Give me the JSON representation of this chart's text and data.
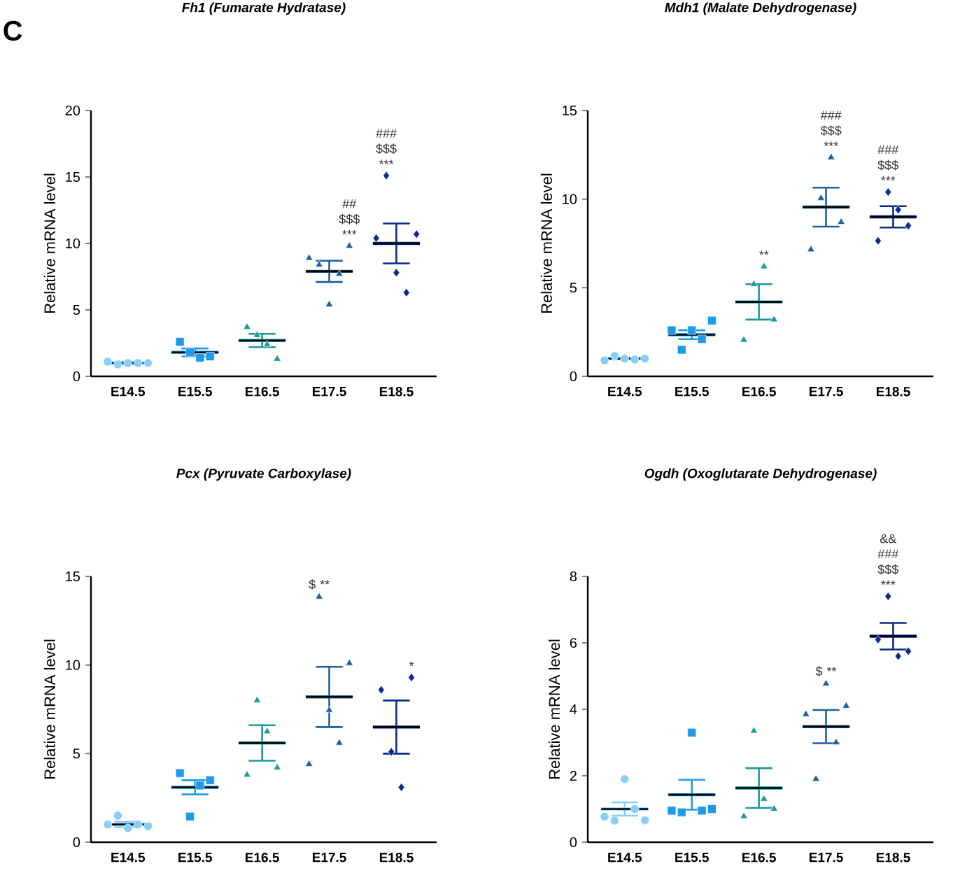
{
  "chart_data": [
    {
      "type": "scatter",
      "title": "Fh1 (Fumarate Hydratase)",
      "ylabel": "Relative mRNA level",
      "categories": [
        "E14.5",
        "E15.5",
        "E16.5",
        "E17.5",
        "E18.5"
      ],
      "ylim": [
        0,
        20
      ],
      "yticks": [
        0,
        5,
        10,
        15,
        20
      ],
      "series": [
        {
          "x": [
            "E14.5",
            "E14.5",
            "E14.5",
            "E14.5",
            "E14.5"
          ],
          "values": [
            1.1,
            0.9,
            1.0,
            1.0,
            1.0
          ],
          "color": "#87cefa",
          "marker": "circle"
        },
        {
          "x": [
            "E15.5",
            "E15.5",
            "E15.5",
            "E15.5"
          ],
          "values": [
            2.6,
            1.8,
            1.4,
            1.5
          ],
          "color": "#1e9be8",
          "marker": "square"
        },
        {
          "x": [
            "E16.5",
            "E16.5",
            "E16.5",
            "E16.5"
          ],
          "values": [
            3.7,
            3.1,
            2.4,
            1.3
          ],
          "color": "#1a9a9a",
          "marker": "triangle"
        },
        {
          "x": [
            "E17.5",
            "E17.5",
            "E17.5",
            "E17.5",
            "E17.5"
          ],
          "values": [
            8.9,
            8.4,
            5.4,
            7.7,
            9.8
          ],
          "color": "#1f5f9f",
          "marker": "triangle",
          "value_labels": [
            null,
            null,
            null,
            null,
            "## $$$ ***"
          ]
        },
        {
          "x": [
            "E18.5",
            "E18.5",
            "E18.5",
            "E18.5",
            "E18.5"
          ],
          "values": [
            10.4,
            15.1,
            7.8,
            6.3,
            10.7
          ],
          "color": "#0a2a8c",
          "marker": "diamond",
          "value_labels": [
            null,
            "### $$$ ***",
            null,
            null,
            null
          ]
        },
        {
          "type": "box",
          "boxes": [
            {
              "low": 0.9,
              "q1": 1.0,
              "median": 1.0,
              "q3": 1.0,
              "high": 1.1
            },
            {
              "low": 1.5,
              "q1": 1.8,
              "median": 1.8,
              "q3": 1.8,
              "high": 2.1
            },
            {
              "low": 2.2,
              "q1": 2.7,
              "median": 2.7,
              "q3": 2.7,
              "high": 3.2
            },
            {
              "low": 7.1,
              "q1": 7.9,
              "median": 7.9,
              "q3": 7.9,
              "high": 8.7
            },
            {
              "low": 8.5,
              "q1": 10.0,
              "median": 10.0,
              "q3": 10.0,
              "high": 11.5
            }
          ],
          "color": "#000000",
          "colors": [
            "#87cefa",
            "#1e9be8",
            "#1a9a9a",
            "#1f5f9f",
            "#0a2a8c"
          ]
        }
      ],
      "annotations": [
        "C"
      ]
    },
    {
      "type": "scatter",
      "title": "Mdh1 (Malate Dehydrogenase)",
      "ylabel": "Relative mRNA level",
      "categories": [
        "E14.5",
        "E15.5",
        "E16.5",
        "E17.5",
        "E18.5"
      ],
      "ylim": [
        0,
        15
      ],
      "yticks": [
        0,
        5,
        10,
        15
      ],
      "series": [
        {
          "x": [
            "E14.5",
            "E14.5",
            "E14.5",
            "E14.5",
            "E14.5"
          ],
          "values": [
            0.9,
            1.15,
            1.0,
            0.95,
            1.0
          ],
          "color": "#87cefa",
          "marker": "circle"
        },
        {
          "x": [
            "E15.5",
            "E15.5",
            "E15.5",
            "E15.5",
            "E15.5"
          ],
          "values": [
            2.6,
            1.5,
            2.6,
            2.1,
            3.15
          ],
          "color": "#1e9be8",
          "marker": "square"
        },
        {
          "x": [
            "E16.5",
            "E16.5",
            "E16.5",
            "E16.5"
          ],
          "values": [
            2.05,
            5.2,
            6.2,
            3.2
          ],
          "color": "#1a9a9a",
          "marker": "triangle",
          "value_labels": [
            null,
            null,
            "**",
            null
          ]
        },
        {
          "x": [
            "E17.5",
            "E17.5",
            "E17.5",
            "E17.5"
          ],
          "values": [
            7.15,
            10.05,
            12.35,
            8.7
          ],
          "color": "#1f5f9f",
          "marker": "triangle",
          "value_labels": [
            null,
            null,
            "### $$$ ***",
            null
          ]
        },
        {
          "x": [
            "E18.5",
            "E18.5",
            "E18.5",
            "E18.5"
          ],
          "values": [
            7.65,
            10.4,
            9.4,
            8.5
          ],
          "color": "#0a2a8c",
          "marker": "diamond",
          "value_labels": [
            null,
            "### $$$ ***",
            null,
            null
          ]
        },
        {
          "type": "box",
          "boxes": [
            {
              "low": 0.95,
              "q1": 1.0,
              "median": 1.0,
              "q3": 1.0,
              "high": 1.05
            },
            {
              "low": 2.1,
              "q1": 2.35,
              "median": 2.35,
              "q3": 2.35,
              "high": 2.6
            },
            {
              "low": 3.2,
              "q1": 4.2,
              "median": 4.2,
              "q3": 4.2,
              "high": 5.2
            },
            {
              "low": 8.45,
              "q1": 9.55,
              "median": 9.55,
              "q3": 9.55,
              "high": 10.65
            },
            {
              "low": 8.4,
              "q1": 9.0,
              "median": 9.0,
              "q3": 9.0,
              "high": 9.6
            }
          ],
          "color": "#000000",
          "colors": [
            "#87cefa",
            "#1e9be8",
            "#1a9a9a",
            "#1f5f9f",
            "#0a2a8c"
          ]
        }
      ]
    },
    {
      "type": "scatter",
      "title": "Pcx (Pyruvate Carboxylase)",
      "ylabel": "Relative mRNA level",
      "categories": [
        "E14.5",
        "E15.5",
        "E16.5",
        "E17.5",
        "E18.5"
      ],
      "ylim": [
        0,
        15
      ],
      "yticks": [
        0,
        5,
        10,
        15
      ],
      "series": [
        {
          "x": [
            "E14.5",
            "E14.5",
            "E14.5",
            "E14.5",
            "E14.5"
          ],
          "values": [
            1.0,
            1.5,
            0.8,
            1.0,
            0.9
          ],
          "color": "#87cefa",
          "marker": "circle"
        },
        {
          "x": [
            "E15.5",
            "E15.5",
            "E15.5",
            "E15.5"
          ],
          "values": [
            3.9,
            1.45,
            3.2,
            3.5
          ],
          "color": "#1e9be8",
          "marker": "square"
        },
        {
          "x": [
            "E16.5",
            "E16.5",
            "E16.5",
            "E16.5"
          ],
          "values": [
            3.8,
            8.0,
            6.25,
            4.2
          ],
          "color": "#1a9a9a",
          "marker": "triangle"
        },
        {
          "x": [
            "E17.5",
            "E17.5",
            "E17.5",
            "E17.5",
            "E17.5"
          ],
          "values": [
            4.4,
            13.85,
            7.45,
            5.6,
            10.1
          ],
          "color": "#1f5f9f",
          "marker": "triangle",
          "value_labels": [
            null,
            "$ **",
            null,
            null,
            null
          ]
        },
        {
          "x": [
            "E18.5",
            "E18.5",
            "E18.5",
            "E18.5"
          ],
          "values": [
            8.6,
            5.1,
            3.1,
            9.3
          ],
          "color": "#0a2a8c",
          "marker": "diamond",
          "value_labels": [
            null,
            null,
            null,
            "*"
          ]
        },
        {
          "type": "box",
          "boxes": [
            {
              "low": 0.85,
              "q1": 1.0,
              "median": 1.0,
              "q3": 1.0,
              "high": 1.15
            },
            {
              "low": 2.7,
              "q1": 3.1,
              "median": 3.1,
              "q3": 3.1,
              "high": 3.5
            },
            {
              "low": 4.6,
              "q1": 5.6,
              "median": 5.6,
              "q3": 5.6,
              "high": 6.6
            },
            {
              "low": 6.5,
              "q1": 8.2,
              "median": 8.2,
              "q3": 8.2,
              "high": 9.9
            },
            {
              "low": 5.0,
              "q1": 6.5,
              "median": 6.5,
              "q3": 6.5,
              "high": 8.0
            }
          ],
          "color": "#000000",
          "colors": [
            "#87cefa",
            "#1e9be8",
            "#1a9a9a",
            "#1f5f9f",
            "#0a2a8c"
          ]
        }
      ]
    },
    {
      "type": "scatter",
      "title": "Ogdh (Oxoglutarate Dehydrogenase)",
      "ylabel": "Relative mRNA level",
      "categories": [
        "E14.5",
        "E15.5",
        "E16.5",
        "E17.5",
        "E18.5"
      ],
      "ylim": [
        0,
        8
      ],
      "yticks": [
        0,
        2,
        4,
        6,
        8
      ],
      "series": [
        {
          "x": [
            "E14.5",
            "E14.5",
            "E14.5",
            "E14.5",
            "E14.5"
          ],
          "values": [
            0.77,
            0.65,
            1.9,
            1.0,
            0.66
          ],
          "color": "#87cefa",
          "marker": "circle"
        },
        {
          "x": [
            "E15.5",
            "E15.5",
            "E15.5",
            "E15.5",
            "E15.5"
          ],
          "values": [
            0.95,
            0.9,
            3.3,
            0.95,
            1.0
          ],
          "color": "#1e9be8",
          "marker": "square"
        },
        {
          "x": [
            "E16.5",
            "E16.5",
            "E16.5",
            "E16.5"
          ],
          "values": [
            0.78,
            3.35,
            1.3,
            1.0
          ],
          "color": "#1a9a9a",
          "marker": "triangle"
        },
        {
          "x": [
            "E17.5",
            "E17.5",
            "E17.5",
            "E17.5",
            "E17.5"
          ],
          "values": [
            3.85,
            1.9,
            4.77,
            3.0,
            4.1
          ],
          "color": "#1f5f9f",
          "marker": "triangle",
          "value_labels": [
            null,
            null,
            "$ **",
            null,
            null
          ]
        },
        {
          "x": [
            "E18.5",
            "E18.5",
            "E18.5",
            "E18.5"
          ],
          "values": [
            6.1,
            7.4,
            5.6,
            5.75
          ],
          "color": "#0a2a8c",
          "marker": "diamond",
          "value_labels": [
            null,
            "&& ### $$$ ***",
            null,
            null
          ]
        },
        {
          "type": "box",
          "boxes": [
            {
              "low": 0.8,
              "q1": 1.0,
              "median": 1.0,
              "q3": 1.0,
              "high": 1.2
            },
            {
              "low": 0.98,
              "q1": 1.43,
              "median": 1.43,
              "q3": 1.43,
              "high": 1.88
            },
            {
              "low": 1.03,
              "q1": 1.63,
              "median": 1.63,
              "q3": 1.63,
              "high": 2.23
            },
            {
              "low": 2.98,
              "q1": 3.48,
              "median": 3.48,
              "q3": 3.48,
              "high": 3.98
            },
            {
              "low": 5.8,
              "q1": 6.2,
              "median": 6.2,
              "q3": 6.2,
              "high": 6.6
            }
          ],
          "color": "#000000",
          "colors": [
            "#87cefa",
            "#1e9be8",
            "#1a9a9a",
            "#1f5f9f",
            "#0a2a8c"
          ]
        }
      ]
    }
  ]
}
